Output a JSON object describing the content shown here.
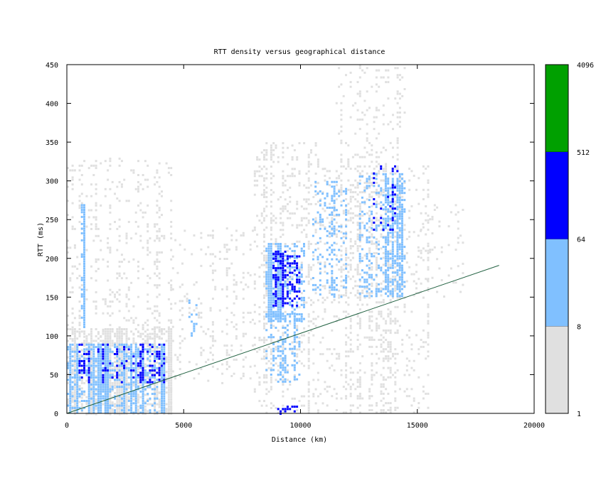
{
  "chart_data": {
    "type": "heatmap",
    "title": "RTT density versus geographical distance",
    "xlabel": "Distance (km)",
    "ylabel": "RTT (ms)",
    "xlim": [
      0,
      20000
    ],
    "ylim": [
      0,
      450
    ],
    "x_ticks": [
      "0",
      "5000",
      "10000",
      "15000",
      "20000"
    ],
    "y_ticks": [
      "0",
      "50",
      "100",
      "150",
      "200",
      "250",
      "300",
      "350",
      "400",
      "450"
    ],
    "grid": false,
    "colorbar": {
      "scale": "log",
      "labels": [
        "1",
        "8",
        "64",
        "512",
        "4096"
      ],
      "bands": [
        {
          "from": 1,
          "to": 8,
          "color": "#e0e0e0"
        },
        {
          "from": 8,
          "to": 64,
          "color": "#80c0ff"
        },
        {
          "from": 64,
          "to": 512,
          "color": "#0000ff"
        },
        {
          "from": 512,
          "to": 4096,
          "color": "#00a000"
        }
      ]
    },
    "density_regions": [
      {
        "level": 1,
        "x": [
          0,
          4500
        ],
        "y": [
          0,
          110
        ],
        "density": 0.55
      },
      {
        "level": 1,
        "x": [
          0,
          4500
        ],
        "y": [
          0,
          330
        ],
        "density": 0.1
      },
      {
        "level": 1,
        "x": [
          4500,
          8000
        ],
        "y": [
          40,
          240
        ],
        "density": 0.1
      },
      {
        "level": 1,
        "x": [
          8000,
          11000
        ],
        "y": [
          0,
          350
        ],
        "density": 0.2
      },
      {
        "level": 1,
        "x": [
          11000,
          15500
        ],
        "y": [
          0,
          320
        ],
        "density": 0.15
      },
      {
        "level": 1,
        "x": [
          11500,
          14500
        ],
        "y": [
          150,
          450
        ],
        "density": 0.12
      },
      {
        "level": 1,
        "x": [
          15000,
          17000
        ],
        "y": [
          150,
          270
        ],
        "density": 0.05
      },
      {
        "level": 2,
        "x": [
          0,
          4200
        ],
        "y": [
          0,
          90
        ],
        "density": 0.5
      },
      {
        "level": 2,
        "x": [
          600,
          800
        ],
        "y": [
          110,
          270
        ],
        "density": 0.45
      },
      {
        "level": 2,
        "x": [
          5200,
          5600
        ],
        "y": [
          100,
          150
        ],
        "density": 0.3
      },
      {
        "level": 2,
        "x": [
          8500,
          10200
        ],
        "y": [
          120,
          220
        ],
        "density": 0.55
      },
      {
        "level": 2,
        "x": [
          8500,
          10000
        ],
        "y": [
          40,
          130
        ],
        "density": 0.25
      },
      {
        "level": 2,
        "x": [
          10500,
          12000
        ],
        "y": [
          150,
          300
        ],
        "density": 0.2
      },
      {
        "level": 2,
        "x": [
          12500,
          14500
        ],
        "y": [
          150,
          310
        ],
        "density": 0.35
      },
      {
        "level": 3,
        "x": [
          500,
          4200
        ],
        "y": [
          40,
          90
        ],
        "density": 0.2
      },
      {
        "level": 3,
        "x": [
          8800,
          10000
        ],
        "y": [
          140,
          210
        ],
        "density": 0.4
      },
      {
        "level": 3,
        "x": [
          13000,
          14200
        ],
        "y": [
          230,
          320
        ],
        "density": 0.1
      },
      {
        "level": 3,
        "x": [
          9000,
          9900
        ],
        "y": [
          0,
          10
        ],
        "density": 0.4
      }
    ],
    "series": [
      {
        "type": "line",
        "color": "#206040",
        "x": [
          0,
          18500
        ],
        "y": [
          0,
          191
        ]
      }
    ]
  }
}
